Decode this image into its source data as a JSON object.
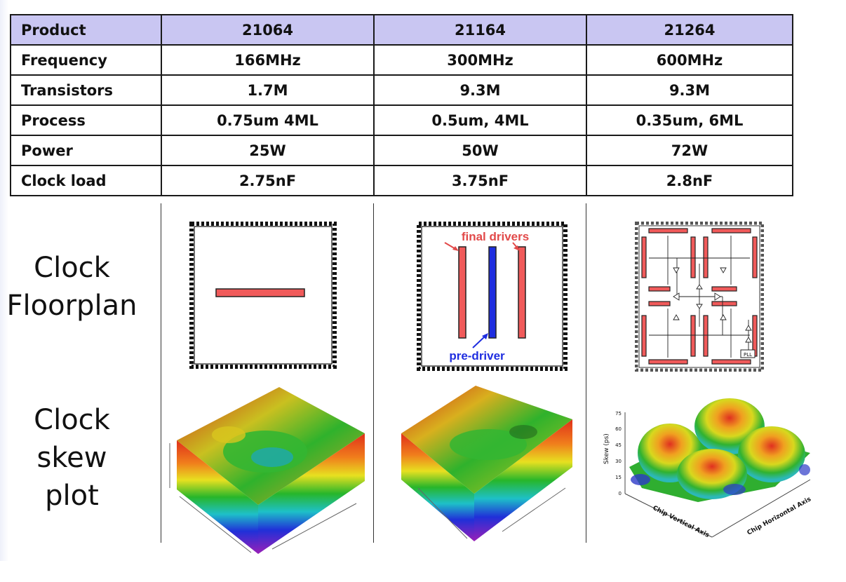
{
  "table": {
    "header": [
      "Product",
      "21064",
      "21164",
      "21264"
    ],
    "rows": [
      [
        "Frequency",
        "166MHz",
        "300MHz",
        "600MHz"
      ],
      [
        "Transistors",
        "1.7M",
        "9.3M",
        "9.3M"
      ],
      [
        "Process",
        "0.75um 4ML",
        "0.5um, 4ML",
        "0.35um, 6ML"
      ],
      [
        "Power",
        "25W",
        "50W",
        "72W"
      ],
      [
        "Clock load",
        "2.75nF",
        "3.75nF",
        "2.8nF"
      ]
    ]
  },
  "row_labels": {
    "floorplan": [
      "Clock",
      "Floorplan"
    ],
    "skew": [
      "Clock",
      "skew",
      "plot"
    ]
  },
  "floorplan_21164": {
    "final_drivers": "final drivers",
    "pre_driver": "pre-driver"
  },
  "floorplan_21264": {
    "pll": "PLL"
  },
  "skew_21264": {
    "y_axis_label": "Skew (ps)",
    "y_ticks": [
      "75",
      "60",
      "45",
      "30",
      "15",
      "0"
    ],
    "x_axis_label_left": "Chip Vertical Axis",
    "x_axis_label_right": "Chip Horizontal Axis"
  },
  "colors": {
    "header_bg": "#c9c6f2",
    "driver_red": "#f05a5a",
    "predriver_blue": "#1f2ee0",
    "label_red": "#e24a4a",
    "label_blue": "#1f2ee0"
  }
}
